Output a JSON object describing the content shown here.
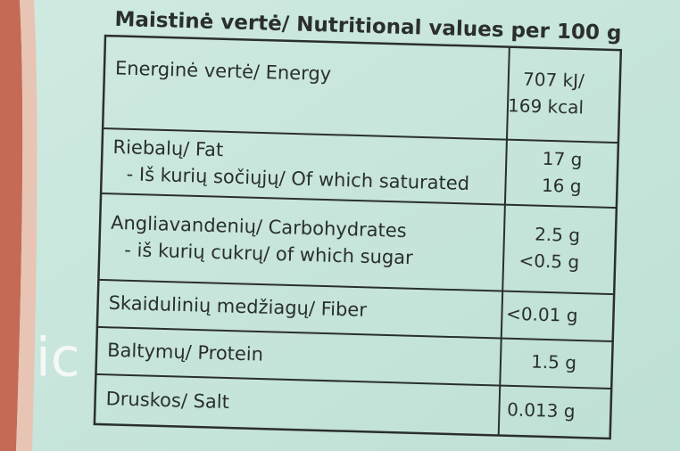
{
  "title": "Maistinė vertė/ Nutritional values per 100 g",
  "side_text": "ic",
  "table": {
    "rows": [
      {
        "labels": [
          "Energinė vertė/ Energy"
        ],
        "values": [
          "707 kJ/",
          "169 kcal"
        ]
      },
      {
        "labels": [
          "Riebalų/ Fat",
          "- Iš kurių sočiųjų/ Of which saturated"
        ],
        "values": [
          "17 g",
          "16 g"
        ]
      },
      {
        "labels": [
          "Angliavandenių/ Carbohydrates",
          "- iš kurių cukrų/ of which sugar"
        ],
        "values": [
          "2.5 g",
          "<0.5 g"
        ]
      },
      {
        "labels": [
          "Skaidulinių medžiagų/ Fiber"
        ],
        "values": [
          "<0.01 g"
        ]
      },
      {
        "labels": [
          "Baltymų/ Protein"
        ],
        "values": [
          "1.5 g"
        ]
      },
      {
        "labels": [
          "Druskos/ Salt"
        ],
        "values": [
          "0.013 g"
        ]
      }
    ]
  }
}
